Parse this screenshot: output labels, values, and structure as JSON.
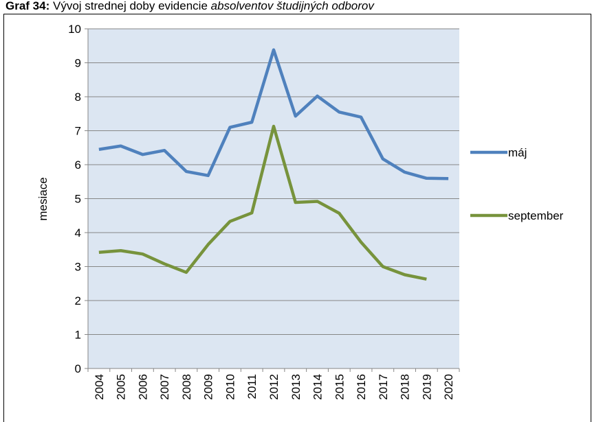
{
  "chart_data": {
    "type": "line",
    "title_bold": "Graf 34:",
    "title_normal": "Vývoj strednej doby evidencie",
    "title_italic": "absolventov študijných odborov",
    "y_label": "mesiace",
    "categories": [
      "2004",
      "2005",
      "2006",
      "2007",
      "2008",
      "2009",
      "2010",
      "2011",
      "2012",
      "2013",
      "2014",
      "2015",
      "2016",
      "2017",
      "2018",
      "2019",
      "2020"
    ],
    "series": [
      {
        "name": "máj",
        "color": "#4f81bd",
        "values": [
          6.45,
          6.55,
          6.3,
          6.42,
          5.8,
          5.68,
          7.1,
          7.25,
          9.38,
          7.43,
          8.02,
          7.55,
          7.4,
          6.17,
          5.78,
          5.6,
          5.59
        ]
      },
      {
        "name": "september",
        "color": "#77933c",
        "values": [
          3.42,
          3.47,
          3.37,
          3.08,
          2.83,
          3.65,
          4.33,
          4.58,
          7.13,
          4.89,
          4.92,
          4.57,
          3.72,
          3.0,
          2.76,
          2.63,
          null
        ]
      }
    ],
    "ylim": [
      0,
      10
    ],
    "yticks": [
      0,
      1,
      2,
      3,
      4,
      5,
      6,
      7,
      8,
      9,
      10
    ],
    "grid": true,
    "legend": "right"
  }
}
